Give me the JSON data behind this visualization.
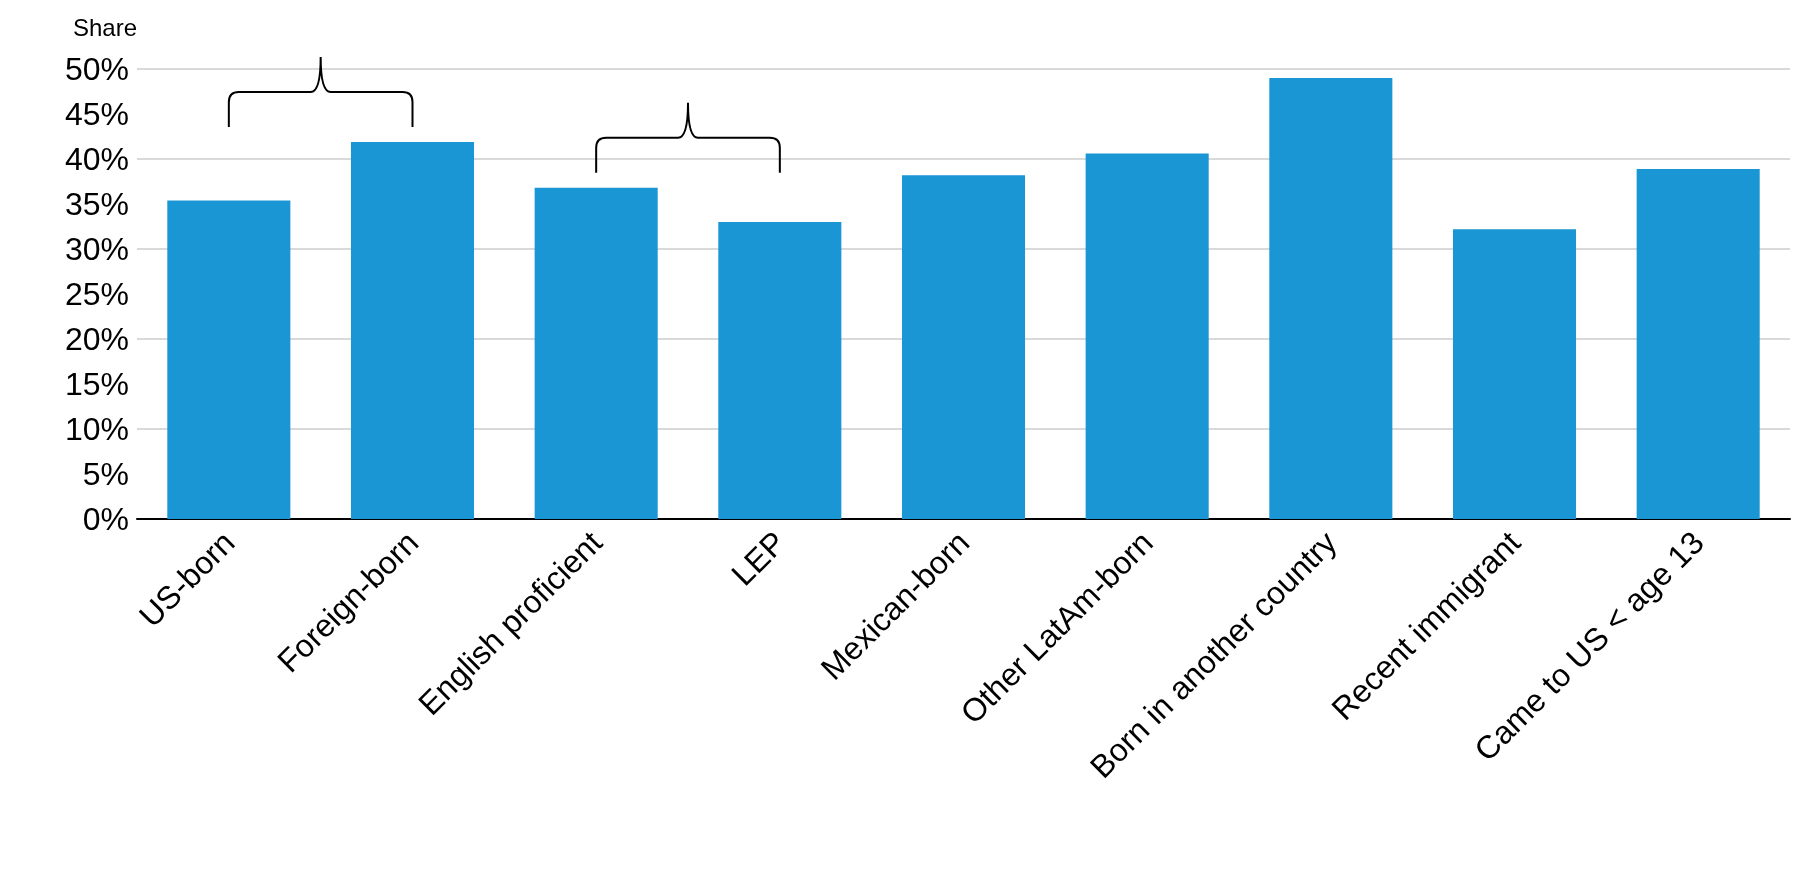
{
  "chart_data": {
    "type": "bar",
    "ylabel": "Share",
    "categories": [
      "US-born",
      "Foreign-born",
      "English proficient",
      "LEP",
      "Mexican-born",
      "Other LatAm-born",
      "Born in another country",
      "Recent immigrant",
      "Came to US < age 13"
    ],
    "values": [
      35.4,
      41.9,
      36.8,
      33.0,
      38.2,
      40.6,
      49.0,
      32.2,
      38.9
    ],
    "color": "#1996d3",
    "ylim": [
      0,
      50
    ],
    "yticks": [
      {
        "value": 0,
        "label": "0%"
      },
      {
        "value": 5,
        "label": "5%"
      },
      {
        "value": 10,
        "label": "10%"
      },
      {
        "value": 15,
        "label": "15%"
      },
      {
        "value": 20,
        "label": "20%"
      },
      {
        "value": 25,
        "label": "25%"
      },
      {
        "value": 30,
        "label": "30%"
      },
      {
        "value": 35,
        "label": "35%"
      },
      {
        "value": 40,
        "label": "40%"
      },
      {
        "value": 45,
        "label": "45%"
      },
      {
        "value": 50,
        "label": "50%"
      }
    ],
    "grid": "y"
  }
}
